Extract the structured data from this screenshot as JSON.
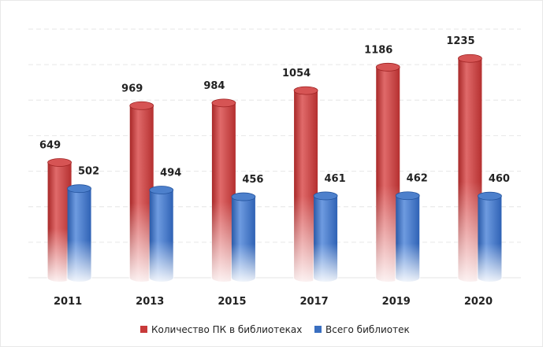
{
  "chart_data": {
    "type": "bar",
    "title": "",
    "xlabel": "",
    "ylabel": "",
    "categories": [
      "2011",
      "2013",
      "2015",
      "2017",
      "2019",
      "2020"
    ],
    "series": [
      {
        "name": "Количество ПК в библиотеках",
        "color": "#c83a3a",
        "values": [
          649,
          969,
          984,
          1054,
          1186,
          1235
        ]
      },
      {
        "name": "Всего библиотек",
        "color": "#3a6fc0",
        "values": [
          502,
          494,
          456,
          461,
          462,
          460
        ]
      }
    ],
    "ylim": [
      0,
      1400
    ],
    "grid": true,
    "legend_position": "bottom",
    "bar_style": "3d-cylinder-gradient"
  }
}
